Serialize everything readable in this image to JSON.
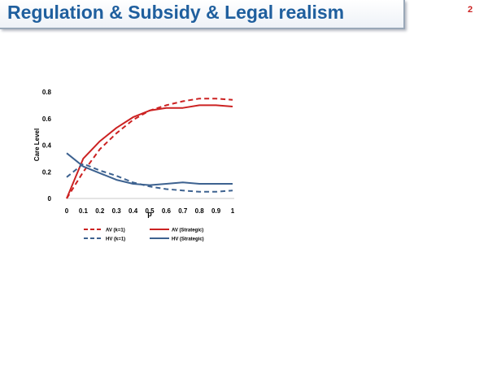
{
  "slide": {
    "title": "Regulation & Subsidy & Legal realism",
    "page_number": "2"
  },
  "chart_data": {
    "type": "line",
    "title": "",
    "xlabel": "p",
    "ylabel": "Care Level",
    "x": [
      0,
      0.1,
      0.2,
      0.3,
      0.4,
      0.5,
      0.6,
      0.7,
      0.8,
      0.9,
      1
    ],
    "x_tick_labels": [
      "0",
      "0.1",
      "0.2",
      "0.3",
      "0.4",
      "0.5",
      "0.6",
      "0.7",
      "0.8",
      "0.9",
      "1"
    ],
    "y_tick_labels": [
      "0",
      "0.2",
      "0.4",
      "0.6",
      "0.8"
    ],
    "ylim": [
      0,
      0.8
    ],
    "xlim": [
      0,
      1
    ],
    "grid": false,
    "legend_position": "bottom",
    "series": [
      {
        "name": "AV (k=1)",
        "color": "#cc2222",
        "style": "dashed",
        "values": [
          0.0,
          0.2,
          0.37,
          0.49,
          0.59,
          0.66,
          0.7,
          0.73,
          0.75,
          0.75,
          0.74
        ]
      },
      {
        "name": "AV (Strategic)",
        "color": "#cc2222",
        "style": "solid",
        "values": [
          0.0,
          0.3,
          0.43,
          0.53,
          0.61,
          0.66,
          0.68,
          0.68,
          0.7,
          0.7,
          0.69
        ]
      },
      {
        "name": "HV (k=1)",
        "color": "#3d6290",
        "style": "dashed",
        "values": [
          0.16,
          0.26,
          0.21,
          0.17,
          0.12,
          0.09,
          0.07,
          0.06,
          0.05,
          0.05,
          0.06
        ]
      },
      {
        "name": "HV (Strategic)",
        "color": "#3d6290",
        "style": "solid",
        "values": [
          0.34,
          0.24,
          0.19,
          0.14,
          0.11,
          0.1,
          0.11,
          0.12,
          0.11,
          0.11,
          0.11
        ]
      }
    ]
  }
}
